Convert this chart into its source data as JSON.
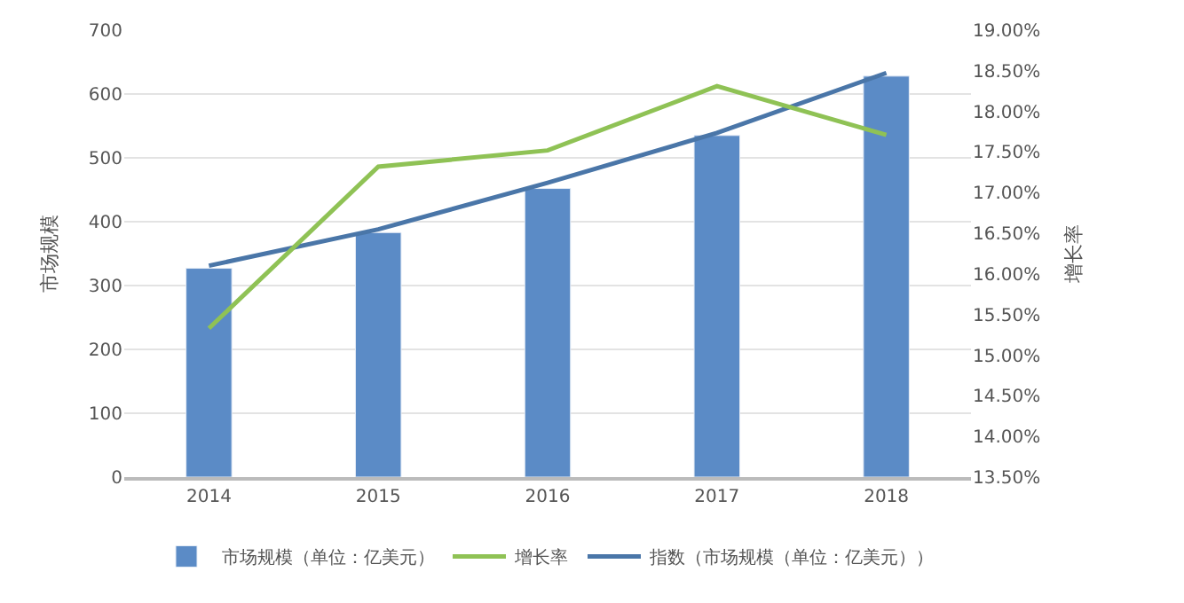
{
  "chart_data": {
    "type": "bar",
    "categories": [
      "2014",
      "2015",
      "2016",
      "2017",
      "2018"
    ],
    "ylabel": "市场规模",
    "y2label": "增长率",
    "series": [
      {
        "name": "市场规模（单位：亿美元）",
        "color": "#5b8bc6",
        "values": [
          327,
          383,
          452,
          535,
          628
        ]
      },
      {
        "name": "增长率",
        "type": "line",
        "axis": "y2",
        "color": "#8fc255",
        "values": [
          15.33,
          17.32,
          17.52,
          18.31,
          17.71
        ]
      },
      {
        "name": "指数（市场规模（单位：亿美元））",
        "type": "line",
        "color": "#4a76a8",
        "values": [
          331,
          388,
          461,
          539,
          633
        ]
      }
    ],
    "ylim": [
      0,
      700
    ],
    "yticks": [
      0,
      100,
      200,
      300,
      400,
      500,
      600,
      700
    ],
    "y2lim": [
      13.5,
      19.0
    ],
    "y2ticks": [
      {
        "value": 13.5,
        "label": "13.50%"
      },
      {
        "value": 14.0,
        "label": "14.00%"
      },
      {
        "value": 14.5,
        "label": "14.50%"
      },
      {
        "value": 15.0,
        "label": "15.00%"
      },
      {
        "value": 15.5,
        "label": "15.50%"
      },
      {
        "value": 16.0,
        "label": "16.00%"
      },
      {
        "value": 16.5,
        "label": "16.50%"
      },
      {
        "value": 17.0,
        "label": "17.00%"
      },
      {
        "value": 17.5,
        "label": "17.50%"
      },
      {
        "value": 18.0,
        "label": "18.00%"
      },
      {
        "value": 18.5,
        "label": "18.50%"
      },
      {
        "value": 19.0,
        "label": "19.00%"
      }
    ],
    "grid": "y",
    "legend": "bottom",
    "marker": "none",
    "line_style": "solid"
  }
}
